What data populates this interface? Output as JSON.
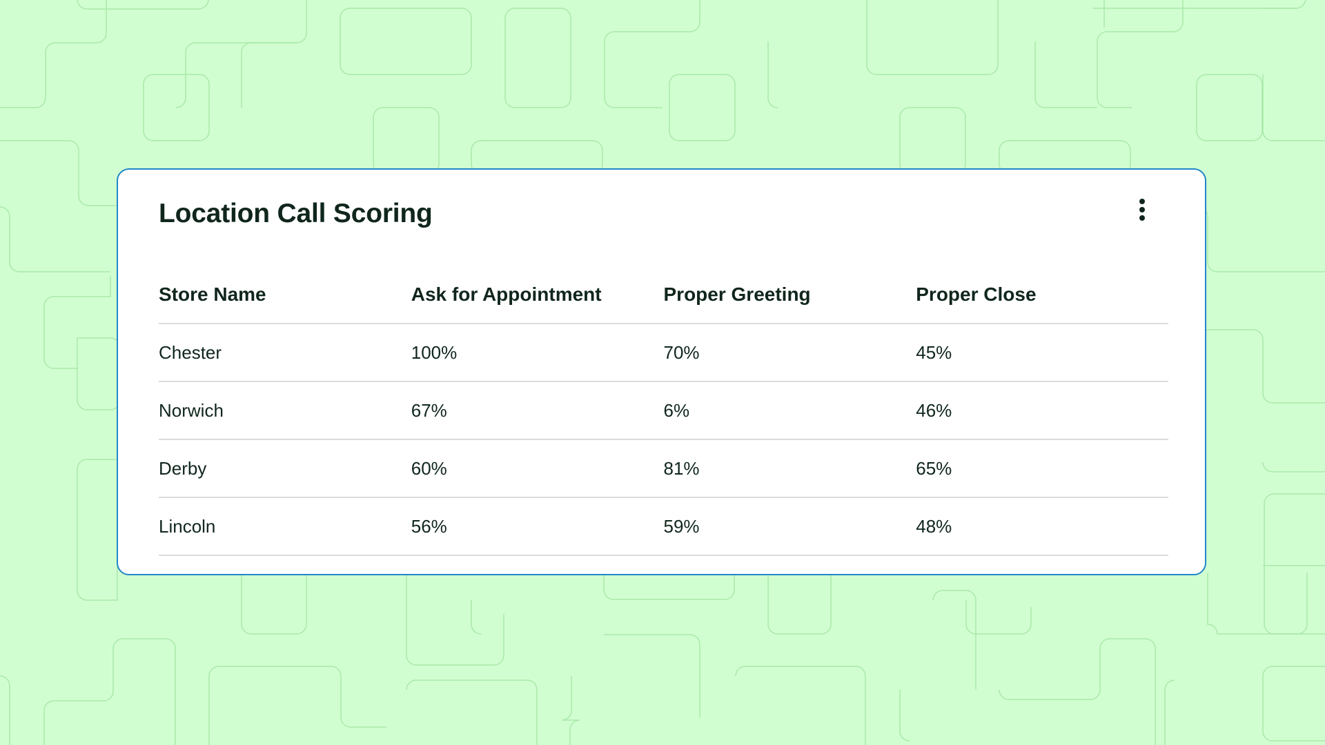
{
  "card": {
    "title": "Location Call Scoring",
    "menu_icon": "more-vertical-icon"
  },
  "table": {
    "columns": [
      "Store Name",
      "Ask for Appointment",
      "Proper Greeting",
      "Proper Close"
    ],
    "rows": [
      [
        "Chester",
        "100%",
        "70%",
        "45%"
      ],
      [
        "Norwich",
        "67%",
        "6%",
        "46%"
      ],
      [
        "Derby",
        "60%",
        "81%",
        "65%"
      ],
      [
        "Lincoln",
        "56%",
        "59%",
        "48%"
      ]
    ]
  },
  "colors": {
    "background": "#d1fed1",
    "pattern_line": "#a9e8a9",
    "card_border": "#1f86c9",
    "text": "#10261c",
    "divider": "#dcdcdc"
  }
}
